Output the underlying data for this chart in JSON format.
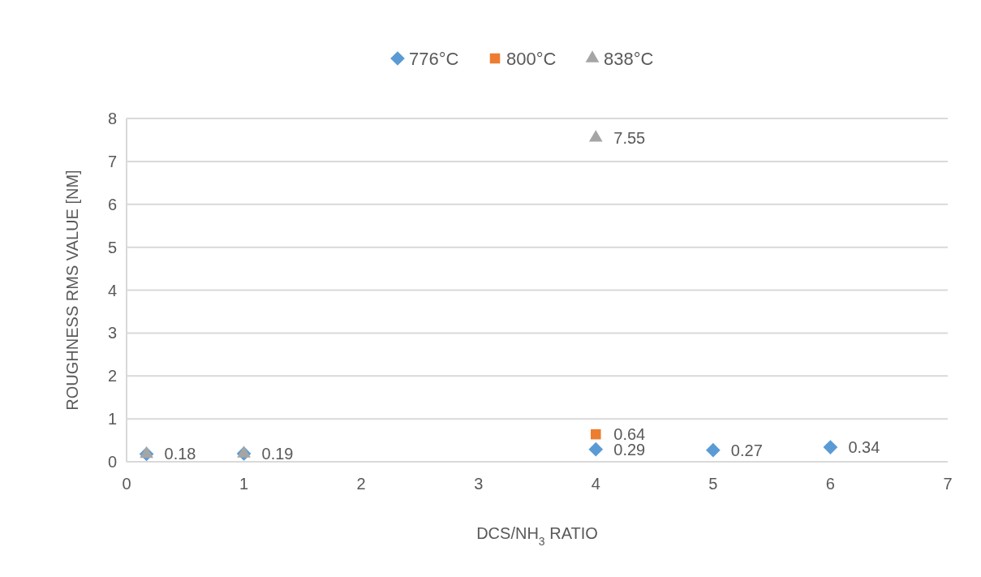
{
  "chart_data": {
    "type": "scatter",
    "xlabel": "DCS/NH$_{3}$ RATIO",
    "ylabel": "ROUGHNESS RMS VALUE [NM]",
    "xlim": [
      0,
      7
    ],
    "xticks": [
      0,
      1,
      2,
      3,
      4,
      5,
      6,
      7
    ],
    "ylim": [
      0,
      8
    ],
    "yticks": [
      0,
      1,
      2,
      3,
      4,
      5,
      6,
      7,
      8
    ],
    "grid": "y",
    "legend": "top",
    "series": [
      {
        "name": "776°C",
        "color": "#5b9bd5",
        "marker": "diamond",
        "x": [
          0.17,
          1,
          4,
          5,
          6
        ],
        "values": [
          0.18,
          0.19,
          0.29,
          0.27,
          0.34
        ],
        "value_labels": [
          "0.18",
          "0.19",
          "0.29",
          "0.27",
          "0.34"
        ]
      },
      {
        "name": "800°C",
        "color": "#ed7d31",
        "marker": "square",
        "x": [
          4
        ],
        "values": [
          0.64
        ],
        "value_labels": [
          "0.64"
        ]
      },
      {
        "name": "838°C",
        "color": "#a5a5a5",
        "marker": "triangle",
        "x": [
          0.17,
          1,
          4
        ],
        "values": [
          0.18,
          0.19,
          7.55
        ],
        "value_labels": [
          null,
          null,
          "7.55"
        ]
      }
    ]
  }
}
